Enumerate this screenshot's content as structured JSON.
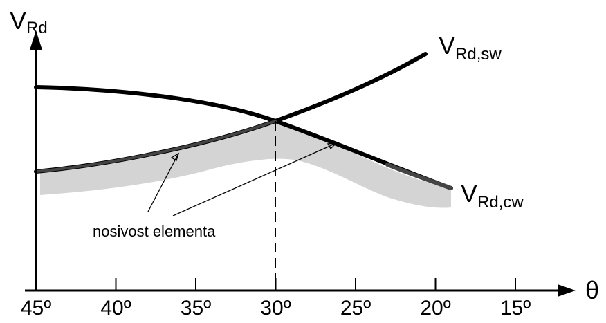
{
  "axes": {
    "y_label_main": "V",
    "y_label_sub": "Rd",
    "x_label": "θ",
    "x_ticks": [
      "45º",
      "40º",
      "35º",
      "30º",
      "25º",
      "20º",
      "15º"
    ]
  },
  "curves": {
    "sw": {
      "label_main": "V",
      "label_sub": "Rd,sw"
    },
    "cw": {
      "label_main": "V",
      "label_sub": "Rd,cw"
    }
  },
  "annotation": {
    "text": "nosivost elementa"
  },
  "colors": {
    "curve": "#000000",
    "curve_dark": "#444444",
    "shaded_region": "#d4d4d4"
  }
}
